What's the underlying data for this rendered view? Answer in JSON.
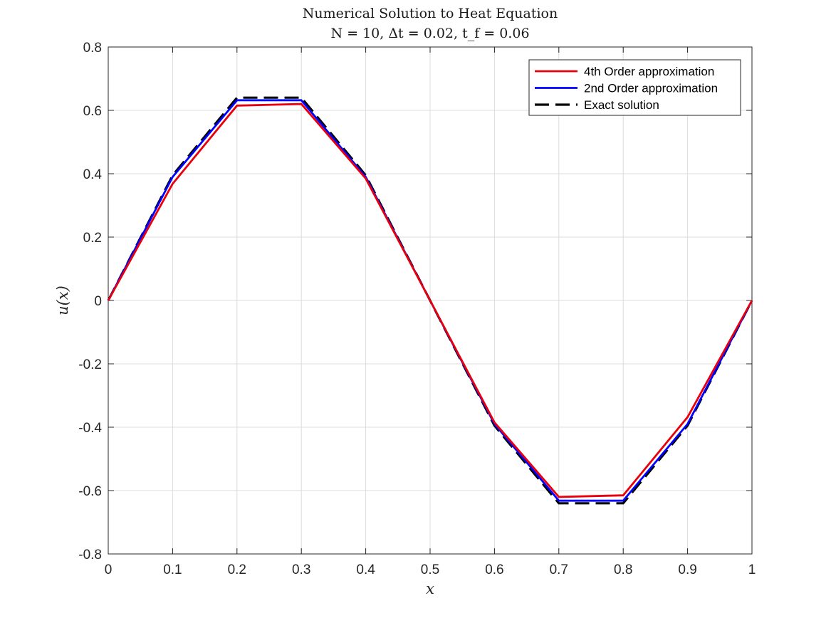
{
  "chart_data": {
    "type": "line",
    "title": "Numerical Solution to Heat Equation",
    "subtitle": "N = 10, Δt = 0.02, t_f = 0.06",
    "xlabel": "x",
    "ylabel": "u(x)",
    "xlim": [
      0,
      1
    ],
    "ylim": [
      -0.8,
      0.8
    ],
    "xticks": [
      0,
      0.1,
      0.2,
      0.3,
      0.4,
      0.5,
      0.6,
      0.7,
      0.8,
      0.9,
      1
    ],
    "xtick_labels": [
      "0",
      "0.1",
      "0.2",
      "0.3",
      "0.4",
      "0.5",
      "0.6",
      "0.7",
      "0.8",
      "0.9",
      "1"
    ],
    "yticks": [
      -0.8,
      -0.6,
      -0.4,
      -0.2,
      0,
      0.2,
      0.4,
      0.6,
      0.8
    ],
    "ytick_labels": [
      "-0.8",
      "-0.6",
      "-0.4",
      "-0.2",
      "0",
      "0.2",
      "0.4",
      "0.6",
      "0.8"
    ],
    "grid": true,
    "legend_position": "top-right",
    "x": [
      0,
      0.1,
      0.2,
      0.3,
      0.4,
      0.5,
      0.6,
      0.7,
      0.8,
      0.9,
      1
    ],
    "series": [
      {
        "name": "4th Order approximation",
        "color": "#e8000b",
        "style": "solid",
        "values": [
          0,
          0.368,
          0.615,
          0.62,
          0.385,
          0,
          -0.385,
          -0.62,
          -0.615,
          -0.368,
          0
        ]
      },
      {
        "name": "2nd Order approximation",
        "color": "#0000ff",
        "style": "solid",
        "values": [
          0,
          0.39,
          0.632,
          0.632,
          0.39,
          0,
          -0.39,
          -0.632,
          -0.632,
          -0.39,
          0
        ]
      },
      {
        "name": "Exact solution",
        "color": "#000000",
        "style": "dashed",
        "values": [
          0,
          0.395,
          0.64,
          0.64,
          0.395,
          0,
          -0.395,
          -0.64,
          -0.64,
          -0.395,
          0
        ]
      }
    ]
  }
}
